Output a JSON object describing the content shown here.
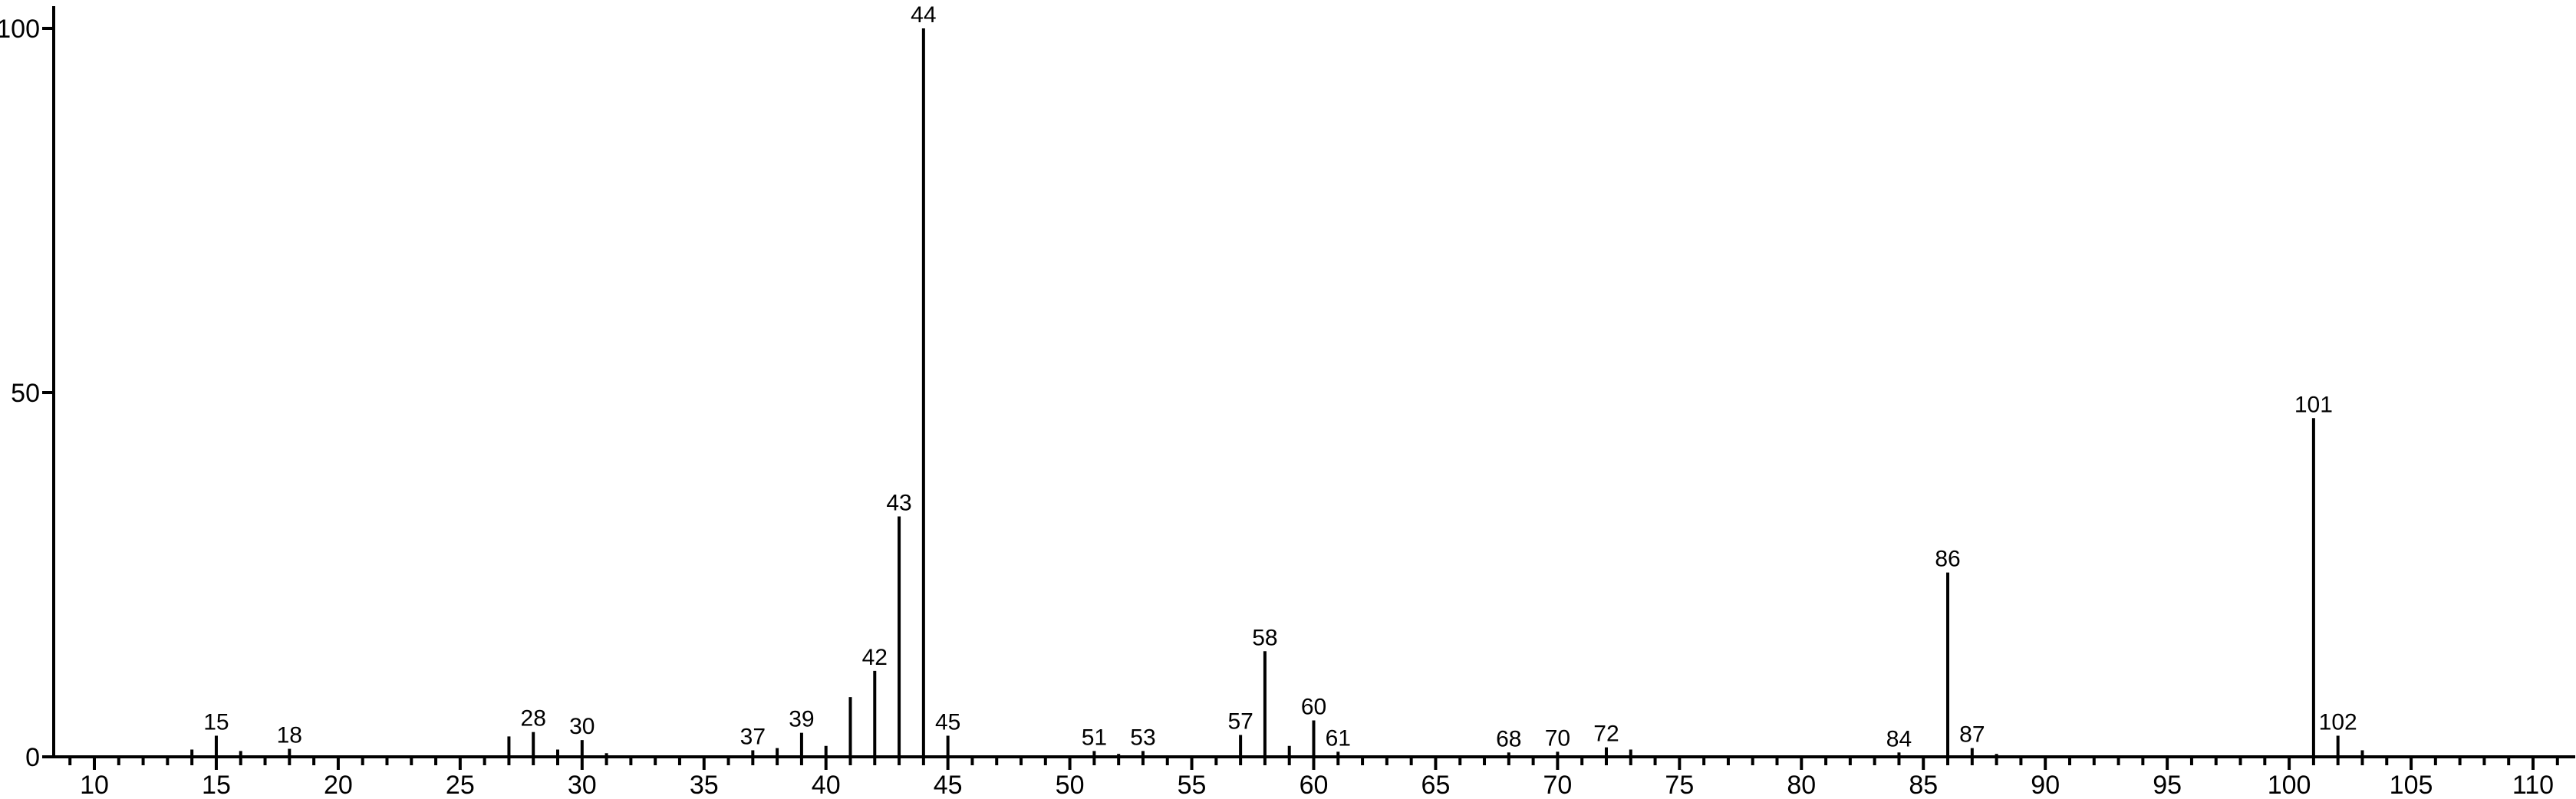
{
  "chart_data": {
    "type": "bar",
    "subtype": "mass-spectrum-stick-plot",
    "title": "",
    "xlabel": "",
    "ylabel": "",
    "grid": false,
    "legend": null,
    "colors": {
      "foreground": "#000000",
      "background": "#ffffff"
    },
    "x_axis": {
      "range": [
        8.3,
        111.7
      ],
      "minor_tick_step": 1,
      "minor_tick_start": 9,
      "minor_tick_end": 111,
      "major_tick_step": 5,
      "tick_labels": [
        10,
        15,
        20,
        25,
        30,
        35,
        40,
        45,
        50,
        55,
        60,
        65,
        70,
        75,
        80,
        85,
        90,
        95,
        100,
        105,
        110
      ]
    },
    "y_axis": {
      "range": [
        0,
        100
      ],
      "tick_labels": [
        0,
        50,
        100
      ]
    },
    "peaks": [
      {
        "mz": 14,
        "intensity": 1.0,
        "labeled": false
      },
      {
        "mz": 15,
        "intensity": 2.9,
        "labeled": true
      },
      {
        "mz": 16,
        "intensity": 0.8,
        "labeled": false
      },
      {
        "mz": 18,
        "intensity": 1.1,
        "labeled": true
      },
      {
        "mz": 27,
        "intensity": 2.8,
        "labeled": false
      },
      {
        "mz": 28,
        "intensity": 3.4,
        "labeled": true
      },
      {
        "mz": 29,
        "intensity": 1.0,
        "labeled": false
      },
      {
        "mz": 30,
        "intensity": 2.3,
        "labeled": true
      },
      {
        "mz": 31,
        "intensity": 0.5,
        "labeled": false
      },
      {
        "mz": 37,
        "intensity": 0.9,
        "labeled": true
      },
      {
        "mz": 38,
        "intensity": 1.2,
        "labeled": false
      },
      {
        "mz": 39,
        "intensity": 3.3,
        "labeled": true
      },
      {
        "mz": 40,
        "intensity": 1.5,
        "labeled": false
      },
      {
        "mz": 41,
        "intensity": 8.2,
        "labeled": false
      },
      {
        "mz": 42,
        "intensity": 11.8,
        "labeled": true
      },
      {
        "mz": 43,
        "intensity": 33.0,
        "labeled": true
      },
      {
        "mz": 44,
        "intensity": 100.0,
        "labeled": true
      },
      {
        "mz": 45,
        "intensity": 2.9,
        "labeled": true
      },
      {
        "mz": 51,
        "intensity": 0.8,
        "labeled": true
      },
      {
        "mz": 52,
        "intensity": 0.4,
        "labeled": false
      },
      {
        "mz": 53,
        "intensity": 0.8,
        "labeled": true
      },
      {
        "mz": 57,
        "intensity": 3.0,
        "labeled": true
      },
      {
        "mz": 58,
        "intensity": 14.5,
        "labeled": true
      },
      {
        "mz": 59,
        "intensity": 1.5,
        "labeled": false
      },
      {
        "mz": 60,
        "intensity": 5.0,
        "labeled": true
      },
      {
        "mz": 61,
        "intensity": 0.7,
        "labeled": true
      },
      {
        "mz": 68,
        "intensity": 0.6,
        "labeled": true
      },
      {
        "mz": 70,
        "intensity": 0.7,
        "labeled": true
      },
      {
        "mz": 72,
        "intensity": 1.3,
        "labeled": true
      },
      {
        "mz": 73,
        "intensity": 1.0,
        "labeled": false
      },
      {
        "mz": 84,
        "intensity": 0.6,
        "labeled": true
      },
      {
        "mz": 86,
        "intensity": 25.3,
        "labeled": true
      },
      {
        "mz": 87,
        "intensity": 1.2,
        "labeled": true
      },
      {
        "mz": 88,
        "intensity": 0.4,
        "labeled": false
      },
      {
        "mz": 101,
        "intensity": 46.5,
        "labeled": true
      },
      {
        "mz": 102,
        "intensity": 2.9,
        "labeled": true
      },
      {
        "mz": 103,
        "intensity": 0.9,
        "labeled": false
      }
    ]
  }
}
